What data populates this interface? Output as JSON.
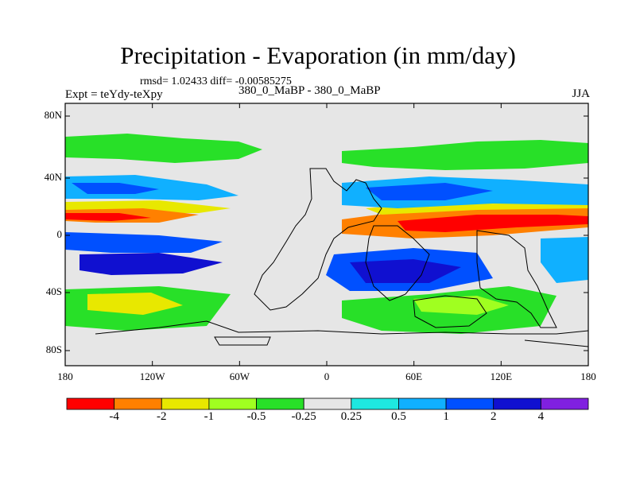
{
  "title": "Precipitation - Evaporation (in mm/day)",
  "stats": "rmsd= 1.02433 diff= -0.00585275",
  "experiment": "Expt = teYdy-teXpy",
  "case": "380_0_MaBP - 380_0_MaBP",
  "season": "JJA",
  "lat_ticks": [
    "80N",
    "40N",
    "0",
    "40S",
    "80S"
  ],
  "lon_ticks": [
    "180",
    "120W",
    "60W",
    "0",
    "60E",
    "120E",
    "180"
  ],
  "colorbar": {
    "labels": [
      "-4",
      "-2",
      "-1",
      "-0.5",
      "-0.25",
      "0.25",
      "0.5",
      "1",
      "2",
      "4"
    ],
    "colors": [
      "#ff0000",
      "#ff8000",
      "#e8e800",
      "#a0ff20",
      "#28e028",
      "#e6e6e6",
      "#1ee8e0",
      "#10b0ff",
      "#0050ff",
      "#1010d0",
      "#8020e0"
    ]
  },
  "palette": {
    "land_bg": "#e6e6e6",
    "strong_wet": "#1010d0",
    "wet": "#0050ff",
    "mid_wet": "#10b0ff",
    "light_wet": "#1ee8e0",
    "light_dry": "#28e028",
    "dry_green": "#a0ff20",
    "dry_yellow": "#e8e800",
    "dry_orange": "#ff8000",
    "dry_red": "#ff0000"
  }
}
